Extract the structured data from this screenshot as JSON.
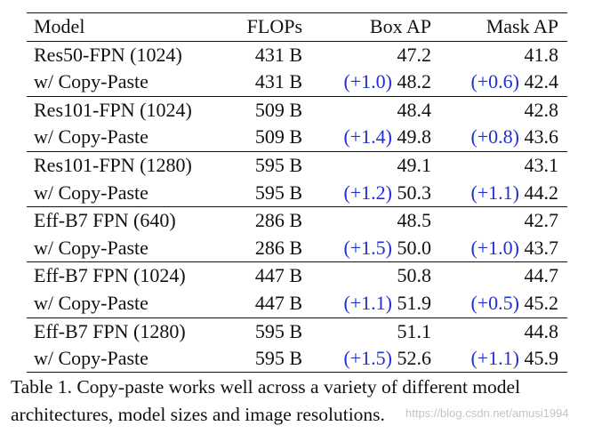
{
  "table": {
    "headers": {
      "model": "Model",
      "flops": "FLOPs",
      "box_ap": "Box AP",
      "mask_ap": "Mask AP"
    },
    "groups": [
      {
        "base": {
          "model": "Res50-FPN (1024)",
          "flops": "431 B",
          "box_ap": "47.2",
          "mask_ap": "41.8"
        },
        "cp": {
          "model": "w/ Copy-Paste",
          "flops": "431 B",
          "box_gain": "(+1.0)",
          "box_ap": "48.2",
          "mask_gain": "(+0.6)",
          "mask_ap": "42.4"
        }
      },
      {
        "base": {
          "model": "Res101-FPN (1024)",
          "flops": "509 B",
          "box_ap": "48.4",
          "mask_ap": "42.8"
        },
        "cp": {
          "model": "w/ Copy-Paste",
          "flops": "509 B",
          "box_gain": "(+1.4)",
          "box_ap": "49.8",
          "mask_gain": "(+0.8)",
          "mask_ap": "43.6"
        }
      },
      {
        "base": {
          "model": "Res101-FPN (1280)",
          "flops": "595 B",
          "box_ap": "49.1",
          "mask_ap": "43.1"
        },
        "cp": {
          "model": "w/ Copy-Paste",
          "flops": "595 B",
          "box_gain": "(+1.2)",
          "box_ap": "50.3",
          "mask_gain": "(+1.1)",
          "mask_ap": "44.2"
        }
      },
      {
        "base": {
          "model": "Eff-B7 FPN (640)",
          "flops": "286 B",
          "box_ap": "48.5",
          "mask_ap": "42.7"
        },
        "cp": {
          "model": "w/ Copy-Paste",
          "flops": "286 B",
          "box_gain": "(+1.5)",
          "box_ap": "50.0",
          "mask_gain": "(+1.0)",
          "mask_ap": "43.7"
        }
      },
      {
        "base": {
          "model": "Eff-B7 FPN (1024)",
          "flops": "447 B",
          "box_ap": "50.8",
          "mask_ap": "44.7"
        },
        "cp": {
          "model": "w/ Copy-Paste",
          "flops": "447 B",
          "box_gain": "(+1.1)",
          "box_ap": "51.9",
          "mask_gain": "(+0.5)",
          "mask_ap": "45.2"
        }
      },
      {
        "base": {
          "model": "Eff-B7 FPN (1280)",
          "flops": "595 B",
          "box_ap": "51.1",
          "mask_ap": "44.8"
        },
        "cp": {
          "model": "w/ Copy-Paste",
          "flops": "595 B",
          "box_gain": "(+1.5)",
          "box_ap": "52.6",
          "mask_gain": "(+1.1)",
          "mask_ap": "45.9"
        }
      }
    ]
  },
  "caption": {
    "line1": "Table 1. Copy-paste works well across a variety of different model",
    "line2": "architectures, model sizes and image resolutions."
  },
  "watermark": "https://blog.csdn.net/amusi1994",
  "colors": {
    "gain": "#1f2fd6",
    "text": "#111111"
  }
}
